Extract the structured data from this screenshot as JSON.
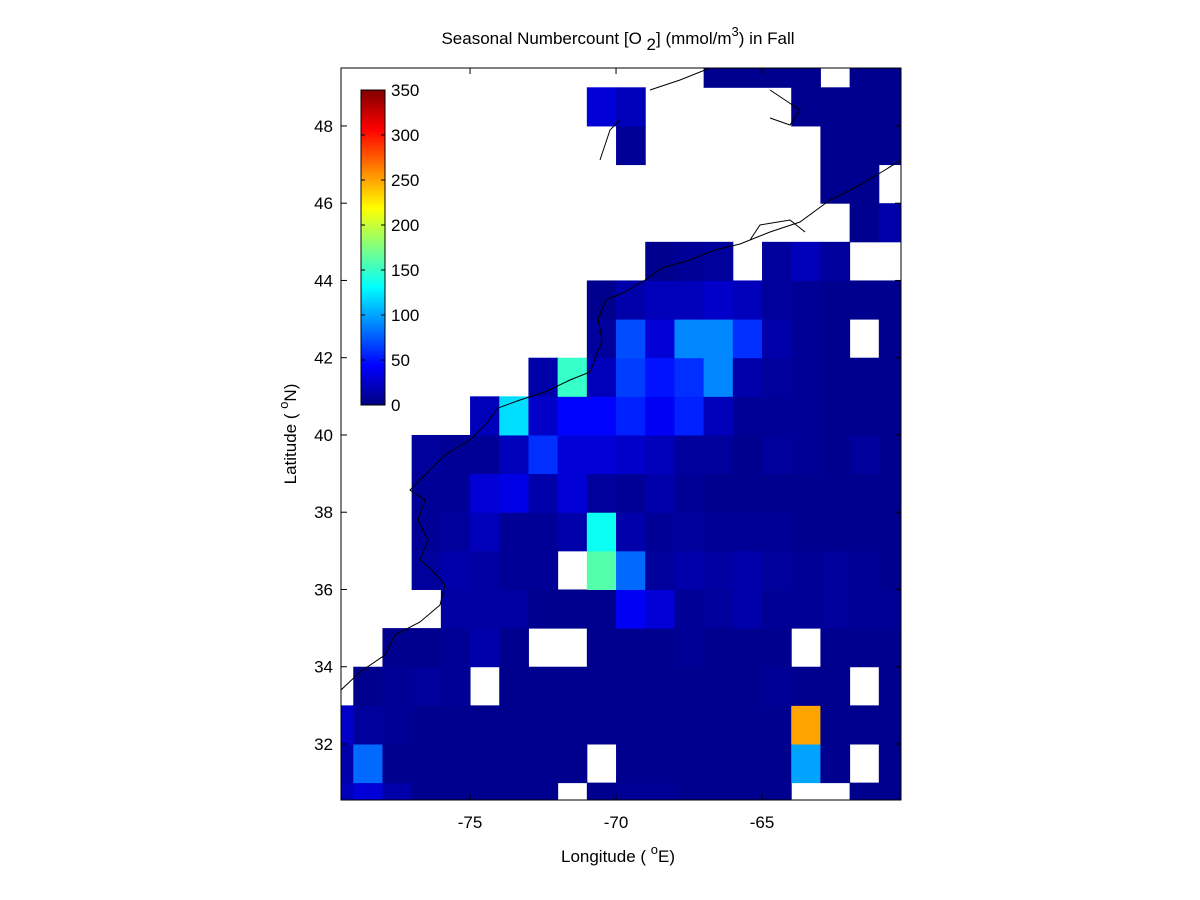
{
  "chart_data": {
    "type": "heatmap",
    "title": [
      "Seasonal Numbercount [O ",
      "2",
      "] (mmol/m",
      "3",
      ") in  Fall"
    ],
    "xlabel": [
      "Longitude ( ",
      "o",
      "E)"
    ],
    "ylabel": [
      "Latitude ( ",
      "o",
      "N)"
    ],
    "colormap": "jet",
    "xbins": [
      -80,
      -79,
      -78,
      -77,
      -76,
      -75,
      -74,
      -73,
      -72,
      -71,
      -70,
      -69,
      -68,
      -67,
      -66,
      -65,
      -64,
      -63,
      -62,
      -61,
      -60
    ],
    "ybins": [
      30,
      31,
      32,
      33,
      34,
      35,
      36,
      37,
      38,
      39,
      40,
      41,
      42,
      43,
      44,
      45,
      46,
      47,
      48,
      49,
      50
    ],
    "z": [
      [
        20,
        30,
        15,
        5,
        5,
        5,
        5,
        5,
        null,
        5,
        8,
        8,
        5,
        5,
        5,
        5,
        null,
        null,
        5,
        5
      ],
      [
        15,
        80,
        5,
        5,
        5,
        5,
        5,
        5,
        5,
        null,
        5,
        5,
        5,
        5,
        5,
        5,
        100,
        5,
        null,
        5
      ],
      [
        25,
        10,
        8,
        5,
        5,
        5,
        5,
        5,
        5,
        5,
        5,
        5,
        5,
        5,
        5,
        5,
        250,
        5,
        5,
        5
      ],
      [
        null,
        5,
        8,
        10,
        8,
        null,
        5,
        5,
        5,
        5,
        5,
        5,
        5,
        5,
        5,
        8,
        5,
        5,
        null,
        5
      ],
      [
        null,
        null,
        5,
        5,
        8,
        15,
        5,
        null,
        null,
        5,
        5,
        5,
        8,
        5,
        5,
        5,
        null,
        5,
        5,
        5
      ],
      [
        null,
        null,
        null,
        null,
        12,
        12,
        12,
        5,
        5,
        5,
        40,
        30,
        8,
        10,
        15,
        8,
        8,
        10,
        8,
        8
      ],
      [
        null,
        null,
        null,
        10,
        15,
        12,
        8,
        8,
        null,
        160,
        80,
        10,
        15,
        12,
        15,
        10,
        8,
        10,
        8,
        5
      ],
      [
        null,
        null,
        null,
        8,
        10,
        20,
        8,
        8,
        15,
        135,
        15,
        8,
        10,
        8,
        8,
        8,
        5,
        5,
        5,
        5
      ],
      [
        null,
        null,
        null,
        8,
        8,
        30,
        35,
        15,
        30,
        10,
        8,
        15,
        8,
        5,
        5,
        5,
        5,
        5,
        5,
        5
      ],
      [
        null,
        null,
        null,
        10,
        8,
        8,
        20,
        60,
        30,
        30,
        25,
        20,
        10,
        10,
        5,
        10,
        8,
        5,
        10,
        5
      ],
      [
        null,
        null,
        null,
        null,
        null,
        20,
        120,
        25,
        45,
        45,
        55,
        40,
        55,
        20,
        8,
        8,
        8,
        5,
        5,
        5
      ],
      [
        null,
        null,
        null,
        null,
        null,
        null,
        null,
        15,
        150,
        20,
        65,
        50,
        60,
        90,
        15,
        10,
        8,
        5,
        5,
        5
      ],
      [
        null,
        null,
        null,
        null,
        null,
        null,
        null,
        null,
        null,
        10,
        70,
        30,
        90,
        90,
        60,
        15,
        8,
        5,
        null,
        5
      ],
      [
        null,
        null,
        null,
        null,
        null,
        null,
        null,
        null,
        null,
        5,
        15,
        20,
        20,
        25,
        20,
        10,
        8,
        5,
        5,
        5
      ],
      [
        null,
        null,
        null,
        null,
        null,
        null,
        null,
        null,
        null,
        null,
        null,
        5,
        8,
        10,
        null,
        10,
        20,
        10,
        null,
        null
      ],
      [
        null,
        null,
        null,
        null,
        null,
        null,
        null,
        null,
        null,
        null,
        null,
        null,
        null,
        null,
        null,
        null,
        null,
        null,
        5,
        15
      ],
      [
        null,
        null,
        null,
        null,
        null,
        null,
        null,
        null,
        null,
        null,
        null,
        null,
        null,
        null,
        null,
        null,
        null,
        5,
        5,
        null
      ],
      [
        null,
        null,
        null,
        null,
        null,
        null,
        null,
        null,
        null,
        null,
        8,
        null,
        null,
        null,
        null,
        null,
        null,
        5,
        5,
        5
      ],
      [
        null,
        null,
        null,
        null,
        null,
        null,
        null,
        null,
        null,
        30,
        20,
        null,
        null,
        null,
        null,
        null,
        5,
        5,
        5,
        5
      ],
      [
        null,
        null,
        null,
        null,
        null,
        null,
        null,
        null,
        null,
        null,
        null,
        null,
        null,
        5,
        5,
        5,
        5,
        null,
        5,
        5
      ]
    ],
    "xlim": [
      -79.42,
      -60.24
    ],
    "ylim": [
      30.55,
      49.5
    ],
    "xticks": [
      -75,
      -70,
      -65
    ],
    "yticks": [
      32,
      34,
      36,
      38,
      40,
      42,
      44,
      46,
      48
    ],
    "clim": [
      0,
      350
    ],
    "cticks": [
      0,
      50,
      100,
      150,
      200,
      250,
      300,
      350
    ]
  }
}
